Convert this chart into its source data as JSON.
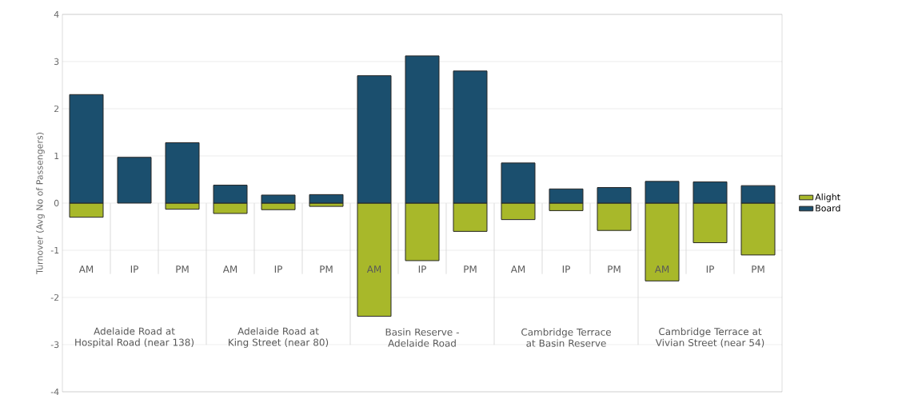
{
  "chart_data": {
    "type": "bar",
    "stacked": true,
    "ylabel": "Turnover (Avg No of Passengers)",
    "categories": [
      "AM",
      "IP",
      "PM",
      "AM",
      "IP",
      "PM",
      "AM",
      "IP",
      "PM",
      "AM",
      "IP",
      "PM",
      "AM",
      "IP",
      "PM"
    ],
    "series": [
      {
        "name": "Alight",
        "color": "#a8b82a",
        "values": [
          -0.3,
          null,
          -0.13,
          -0.22,
          -0.14,
          -0.07,
          -2.4,
          -1.22,
          -0.6,
          -0.35,
          -0.16,
          -0.58,
          -1.65,
          -0.84,
          -1.1
        ]
      },
      {
        "name": "Board",
        "color": "#1b4f6e",
        "values": [
          2.3,
          0.97,
          1.28,
          0.38,
          0.17,
          0.18,
          2.7,
          3.12,
          2.8,
          0.85,
          0.3,
          0.33,
          0.46,
          0.45,
          0.37
        ]
      }
    ],
    "annotations": [
      "Adelaide Road at Hospital Road (near 138)",
      "Adelaide Road at King Street (near 80)",
      "Basin Reserve - Adelaide Road",
      "Cambridge Terrace at Basin Reserve",
      "Cambridge Terrace at Vivian Street (near 54)"
    ],
    "ylim": [
      -4,
      4
    ],
    "yticks": [
      -4,
      -3,
      -2,
      -1,
      0,
      1,
      2,
      3,
      4
    ],
    "grid": "y",
    "legend": "right"
  }
}
